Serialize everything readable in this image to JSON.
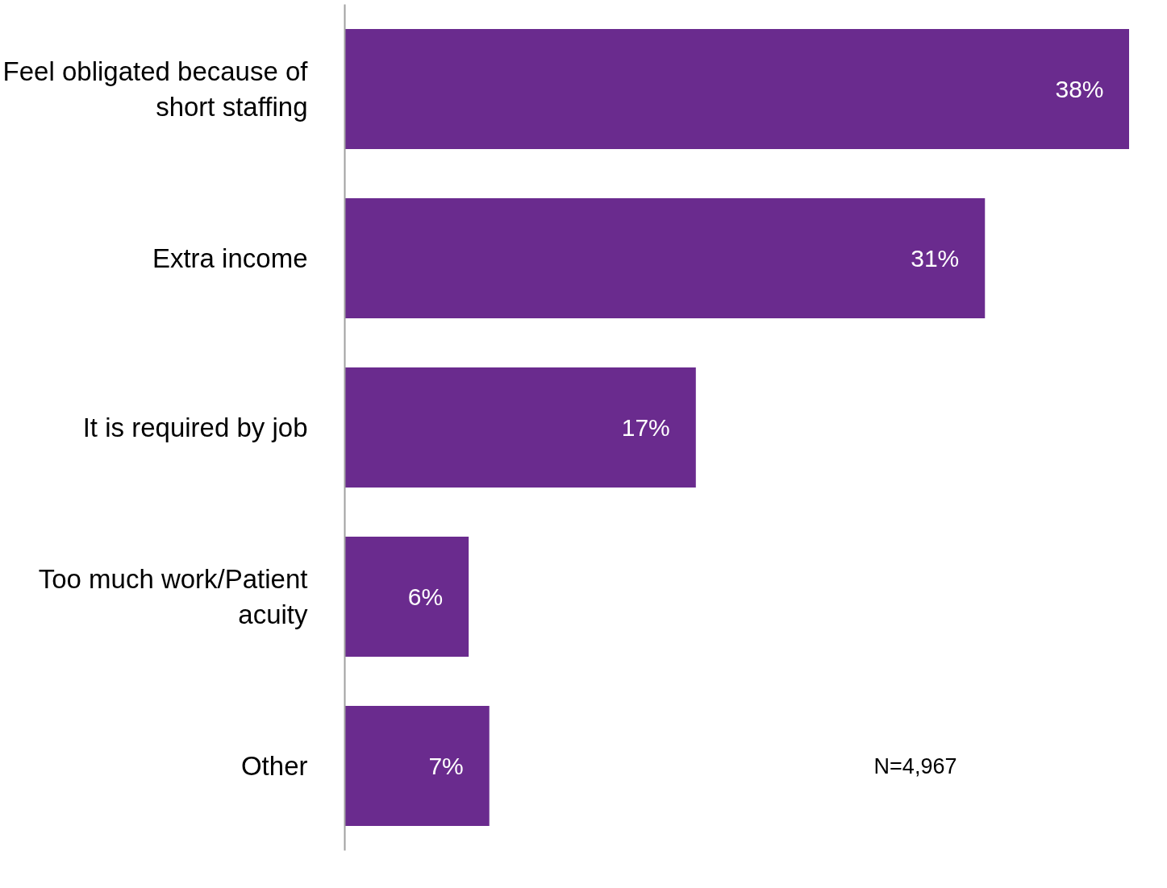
{
  "chart_data": {
    "type": "bar",
    "orientation": "horizontal",
    "categories": [
      "Feel obligated because of short staffing",
      "Extra income",
      "It is required by job",
      "Too much work/Patient acuity",
      "Other"
    ],
    "values": [
      38,
      31,
      17,
      6,
      7
    ],
    "color": "#6a2b8e",
    "data_labels": true,
    "value_labels": [
      "38%",
      "31%",
      "17%",
      "6%",
      "7%"
    ],
    "annotations": [
      "N=4,967"
    ]
  }
}
